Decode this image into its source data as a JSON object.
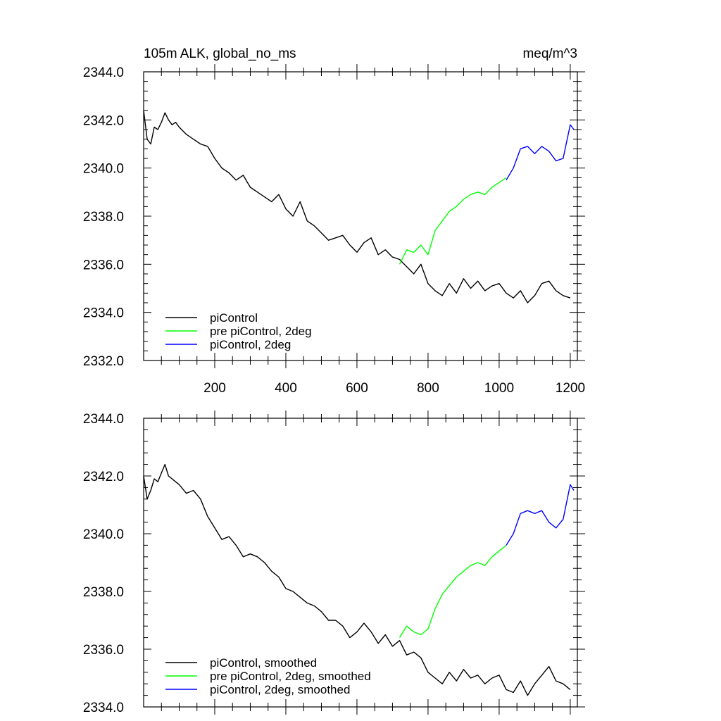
{
  "chart_data": [
    {
      "type": "line",
      "title_left": "105m ALK, global_no_ms",
      "title_right": "meq/m^3",
      "xlim": [
        0,
        1220
      ],
      "ylim": [
        2332,
        2344
      ],
      "x_ticks": [
        200,
        400,
        600,
        800,
        1000,
        1200
      ],
      "y_ticks": [
        2332,
        2334,
        2336,
        2338,
        2340,
        2342,
        2344
      ],
      "grid": false,
      "legend_position": "bottom-left",
      "series": [
        {
          "name": "piControl",
          "color": "#000000",
          "x": [
            0,
            10,
            20,
            30,
            40,
            50,
            60,
            70,
            80,
            90,
            100,
            120,
            140,
            160,
            180,
            200,
            220,
            240,
            260,
            280,
            300,
            320,
            340,
            360,
            380,
            400,
            420,
            440,
            460,
            480,
            500,
            520,
            540,
            560,
            580,
            600,
            620,
            640,
            660,
            680,
            700,
            720,
            740,
            760,
            780,
            800,
            820,
            840,
            860,
            880,
            900,
            920,
            940,
            960,
            980,
            1000,
            1020,
            1040,
            1060,
            1080,
            1100,
            1120,
            1140,
            1160,
            1180,
            1200
          ],
          "y": [
            2342.4,
            2341.2,
            2341.0,
            2341.7,
            2341.6,
            2341.9,
            2342.3,
            2342.0,
            2341.8,
            2341.9,
            2341.7,
            2341.4,
            2341.2,
            2341.0,
            2340.9,
            2340.4,
            2340.0,
            2339.8,
            2339.5,
            2339.7,
            2339.2,
            2339.0,
            2338.8,
            2338.6,
            2338.9,
            2338.3,
            2338.0,
            2338.6,
            2337.8,
            2337.6,
            2337.3,
            2337.0,
            2337.1,
            2337.2,
            2336.8,
            2336.5,
            2336.9,
            2337.1,
            2336.4,
            2336.6,
            2336.3,
            2336.2,
            2335.9,
            2335.6,
            2336.0,
            2335.2,
            2334.9,
            2334.7,
            2335.2,
            2334.8,
            2335.4,
            2335.0,
            2335.3,
            2334.9,
            2335.1,
            2335.2,
            2334.8,
            2334.6,
            2334.9,
            2334.4,
            2334.7,
            2335.2,
            2335.3,
            2334.9,
            2334.7,
            2334.6
          ]
        },
        {
          "name": "pre piControl, 2deg",
          "color": "#00ff00",
          "x": [
            720,
            740,
            760,
            780,
            800,
            820,
            840,
            860,
            880,
            900,
            920,
            940,
            960,
            980,
            1000,
            1020
          ],
          "y": [
            2336.0,
            2336.6,
            2336.5,
            2336.8,
            2336.4,
            2337.4,
            2337.8,
            2338.2,
            2338.4,
            2338.7,
            2338.9,
            2339.0,
            2338.9,
            2339.2,
            2339.4,
            2339.6
          ]
        },
        {
          "name": "piControl, 2deg",
          "color": "#0000ff",
          "x": [
            1020,
            1040,
            1060,
            1080,
            1100,
            1120,
            1140,
            1160,
            1180,
            1200,
            1210
          ],
          "y": [
            2339.5,
            2340.0,
            2340.8,
            2340.9,
            2340.6,
            2340.9,
            2340.7,
            2340.3,
            2340.4,
            2341.8,
            2341.6
          ]
        }
      ]
    },
    {
      "type": "line",
      "xlim": [
        0,
        1220
      ],
      "ylim": [
        2334,
        2344
      ],
      "y_ticks": [
        2334,
        2336,
        2338,
        2340,
        2342,
        2344
      ],
      "grid": false,
      "legend_position": "bottom-left",
      "series": [
        {
          "name": "piControl, smoothed",
          "color": "#000000",
          "x": [
            0,
            10,
            20,
            30,
            40,
            50,
            60,
            70,
            80,
            90,
            100,
            120,
            140,
            160,
            180,
            200,
            220,
            240,
            260,
            280,
            300,
            320,
            340,
            360,
            380,
            400,
            420,
            440,
            460,
            480,
            500,
            520,
            540,
            560,
            580,
            600,
            620,
            640,
            660,
            680,
            700,
            720,
            740,
            760,
            780,
            800,
            820,
            840,
            860,
            880,
            900,
            920,
            940,
            960,
            980,
            1000,
            1020,
            1040,
            1060,
            1080,
            1100,
            1120,
            1140,
            1160,
            1180,
            1200
          ],
          "y": [
            2342.0,
            2341.2,
            2341.5,
            2341.9,
            2341.8,
            2342.1,
            2342.4,
            2342.0,
            2341.9,
            2341.8,
            2341.7,
            2341.4,
            2341.5,
            2341.2,
            2340.6,
            2340.2,
            2339.8,
            2339.9,
            2339.6,
            2339.2,
            2339.3,
            2339.2,
            2339.0,
            2338.7,
            2338.5,
            2338.1,
            2338.0,
            2337.8,
            2337.6,
            2337.5,
            2337.3,
            2337.0,
            2337.0,
            2336.8,
            2336.4,
            2336.6,
            2336.9,
            2336.6,
            2336.2,
            2336.5,
            2336.1,
            2336.3,
            2335.8,
            2335.9,
            2335.7,
            2335.2,
            2335.0,
            2334.8,
            2335.2,
            2334.9,
            2335.3,
            2335.0,
            2335.1,
            2334.8,
            2335.0,
            2335.1,
            2334.6,
            2334.5,
            2334.9,
            2334.4,
            2334.8,
            2335.1,
            2335.4,
            2334.9,
            2334.8,
            2334.6
          ]
        },
        {
          "name": "pre piControl, 2deg, smoothed",
          "color": "#00ff00",
          "x": [
            720,
            740,
            760,
            780,
            800,
            820,
            840,
            860,
            880,
            900,
            920,
            940,
            960,
            980,
            1000,
            1020
          ],
          "y": [
            2336.4,
            2336.8,
            2336.6,
            2336.5,
            2336.7,
            2337.4,
            2337.9,
            2338.2,
            2338.5,
            2338.7,
            2338.9,
            2339.0,
            2338.9,
            2339.2,
            2339.4,
            2339.6
          ]
        },
        {
          "name": "piControl, 2deg, smoothed",
          "color": "#0000ff",
          "x": [
            1020,
            1040,
            1060,
            1080,
            1100,
            1120,
            1140,
            1160,
            1180,
            1200,
            1210
          ],
          "y": [
            2339.6,
            2340.0,
            2340.7,
            2340.8,
            2340.7,
            2340.8,
            2340.4,
            2340.2,
            2340.5,
            2341.7,
            2341.5
          ]
        }
      ]
    }
  ]
}
